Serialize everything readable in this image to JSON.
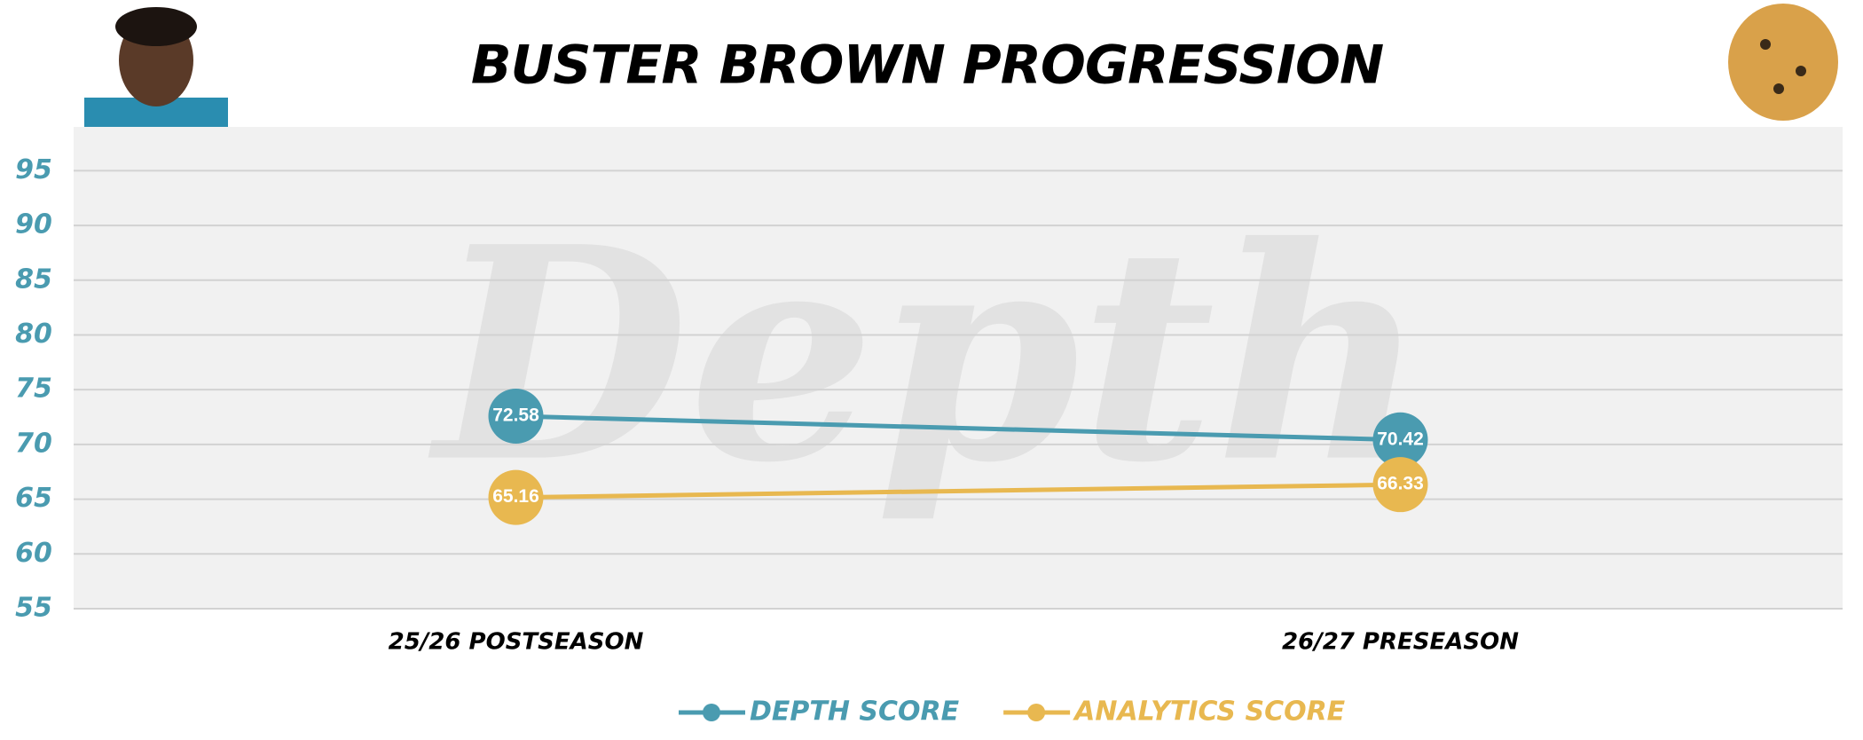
{
  "watermark": "Depth",
  "chart_data": {
    "type": "line",
    "title": "BUSTER BROWN PROGRESSION",
    "categories": [
      "25/26 POSTSEASON",
      "26/27 PRESEASON"
    ],
    "series": [
      {
        "name": "DEPTH SCORE",
        "color": "#4a9bb0",
        "values": [
          72.58,
          70.42
        ]
      },
      {
        "name": "ANALYTICS SCORE",
        "color": "#e8b850",
        "values": [
          65.16,
          66.33
        ]
      }
    ],
    "ylim": [
      55,
      99
    ],
    "yticks": [
      55,
      60,
      65,
      70,
      75,
      80,
      85,
      90,
      95
    ],
    "grid": true,
    "tick_color": "#4a9bb0"
  }
}
